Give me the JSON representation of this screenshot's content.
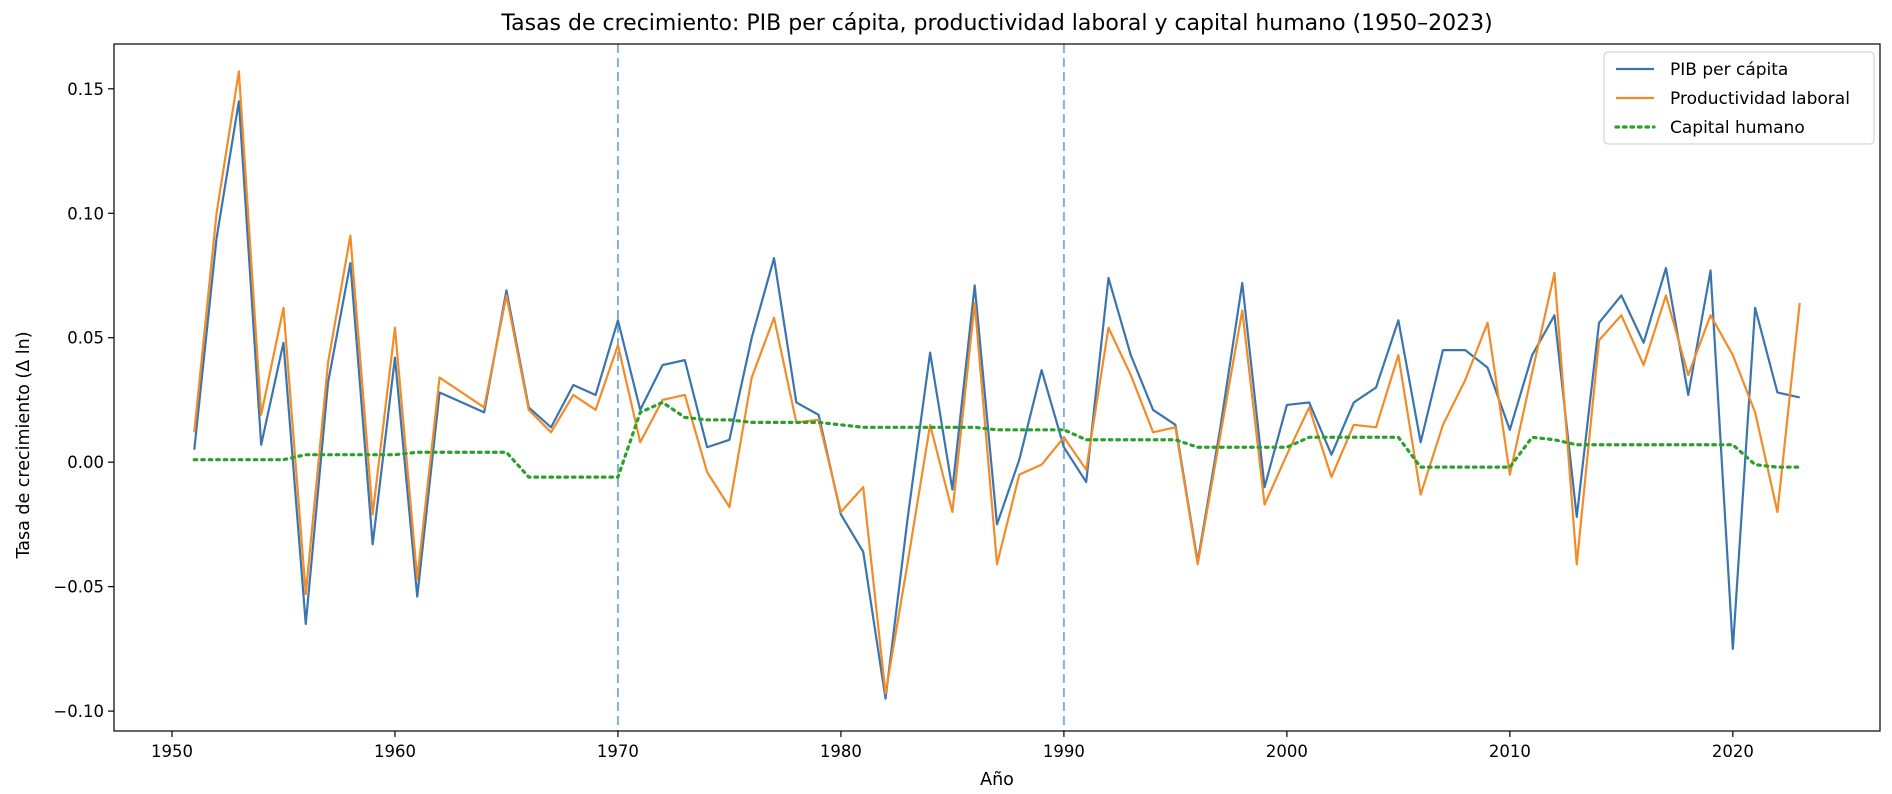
{
  "chart_data": {
    "type": "line",
    "title": "Tasas de crecimiento: PIB per cápita, productividad laboral y capital humano (1950–2023)",
    "xlabel": "Año",
    "ylabel": "Tasa de crecimiento (Δ ln)",
    "xlim": [
      1947.4,
      2026.6
    ],
    "ylim": [
      -0.108,
      0.168
    ],
    "xticks": [
      1950,
      1960,
      1970,
      1980,
      1990,
      2000,
      2010,
      2020
    ],
    "xtick_labels": [
      "1950",
      "1960",
      "1970",
      "1980",
      "1990",
      "2000",
      "2010",
      "2020"
    ],
    "yticks": [
      -0.1,
      -0.05,
      0.0,
      0.05,
      0.1,
      0.15
    ],
    "ytick_labels": [
      "−0.10",
      "−0.05",
      "0.00",
      "0.05",
      "0.10",
      "0.15"
    ],
    "vlines": [
      1970,
      1990
    ],
    "vline_color": "#7fb3d8",
    "legend_position": "top-right",
    "x": [
      1951,
      1952,
      1953,
      1954,
      1955,
      1956,
      1957,
      1958,
      1959,
      1960,
      1961,
      1962,
      1963,
      1964,
      1965,
      1966,
      1967,
      1968,
      1969,
      1970,
      1971,
      1972,
      1973,
      1974,
      1975,
      1976,
      1977,
      1978,
      1979,
      1980,
      1981,
      1982,
      1983,
      1984,
      1985,
      1986,
      1987,
      1988,
      1989,
      1990,
      1991,
      1992,
      1993,
      1994,
      1995,
      1996,
      1997,
      1998,
      1999,
      2000,
      2001,
      2002,
      2003,
      2004,
      2005,
      2006,
      2007,
      2008,
      2009,
      2010,
      2011,
      2012,
      2013,
      2014,
      2015,
      2016,
      2017,
      2018,
      2019,
      2020,
      2021,
      2022,
      2023
    ],
    "series": [
      {
        "name": "PIB per cápita",
        "color": "#3a75b0",
        "style": "solid",
        "values": [
          0.005,
          0.09,
          0.145,
          0.007,
          0.048,
          -0.065,
          0.032,
          0.08,
          -0.033,
          0.042,
          -0.054,
          0.028,
          0.024,
          0.02,
          0.069,
          0.022,
          0.014,
          0.031,
          0.027,
          0.057,
          0.021,
          0.039,
          0.041,
          0.006,
          0.009,
          0.05,
          0.082,
          0.024,
          0.019,
          -0.021,
          -0.036,
          -0.095,
          -0.022,
          0.044,
          -0.011,
          0.071,
          -0.025,
          0.001,
          0.037,
          0.006,
          -0.008,
          0.074,
          0.043,
          0.021,
          0.015,
          -0.04,
          0.013,
          0.072,
          -0.01,
          0.023,
          0.024,
          0.003,
          0.024,
          0.03,
          0.057,
          0.008,
          0.045,
          0.045,
          0.038,
          0.013,
          0.043,
          0.059,
          -0.022,
          0.056,
          0.067,
          0.048,
          0.078,
          0.027,
          0.077,
          -0.075,
          0.062,
          0.028,
          0.026
        ]
      },
      {
        "name": "Productividad laboral",
        "color": "#f28c28",
        "style": "solid",
        "values": [
          0.012,
          0.1,
          0.157,
          0.019,
          0.062,
          -0.053,
          0.04,
          0.091,
          -0.021,
          0.054,
          -0.047,
          0.034,
          0.028,
          0.022,
          0.067,
          0.021,
          0.012,
          0.027,
          0.021,
          0.047,
          0.008,
          0.025,
          0.027,
          -0.004,
          -0.018,
          0.034,
          0.058,
          0.016,
          0.017,
          -0.02,
          -0.01,
          -0.093,
          -0.04,
          0.015,
          -0.02,
          0.064,
          -0.041,
          -0.005,
          -0.001,
          0.01,
          -0.003,
          0.054,
          0.035,
          0.012,
          0.014,
          -0.041,
          0.01,
          0.061,
          -0.017,
          0.003,
          0.022,
          -0.006,
          0.015,
          0.014,
          0.043,
          -0.013,
          0.015,
          0.033,
          0.056,
          -0.005,
          0.036,
          0.076,
          -0.041,
          0.049,
          0.059,
          0.039,
          0.067,
          0.035,
          0.059,
          0.043,
          0.02,
          -0.02,
          0.064
        ]
      },
      {
        "name": "Capital humano",
        "color": "#2ca02c",
        "style": "dotted",
        "values": [
          0.001,
          0.001,
          0.001,
          0.001,
          0.001,
          0.003,
          0.003,
          0.003,
          0.003,
          0.003,
          0.004,
          0.004,
          0.004,
          0.004,
          0.004,
          -0.006,
          -0.006,
          -0.006,
          -0.006,
          -0.006,
          0.02,
          0.024,
          0.018,
          0.017,
          0.017,
          0.016,
          0.016,
          0.016,
          0.016,
          0.015,
          0.014,
          0.014,
          0.014,
          0.014,
          0.014,
          0.014,
          0.013,
          0.013,
          0.013,
          0.013,
          0.009,
          0.009,
          0.009,
          0.009,
          0.009,
          0.006,
          0.006,
          0.006,
          0.006,
          0.006,
          0.01,
          0.01,
          0.01,
          0.01,
          0.01,
          -0.002,
          -0.002,
          -0.002,
          -0.002,
          -0.002,
          0.01,
          0.009,
          0.007,
          0.007,
          0.007,
          0.007,
          0.007,
          0.007,
          0.007,
          0.007,
          -0.001,
          -0.002,
          -0.002
        ]
      }
    ]
  }
}
